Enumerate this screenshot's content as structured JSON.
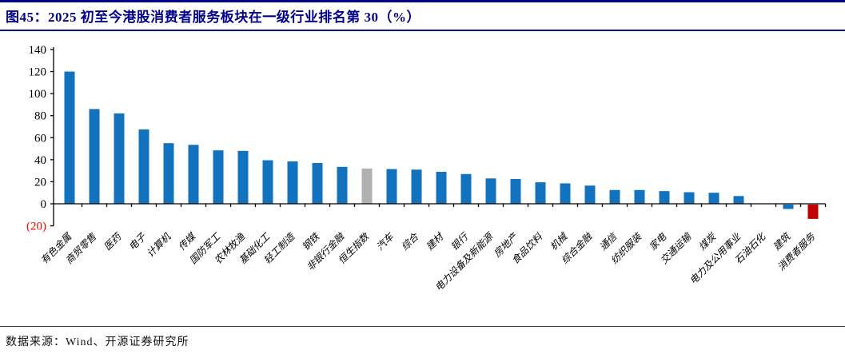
{
  "header": {
    "title": "图45：2025 初至今港股消费者服务板块在一级行业排名第 30（%）"
  },
  "footer": {
    "source": "数据来源：Wind、开源证券研究所"
  },
  "chart_data": {
    "type": "bar",
    "title": "2025 初至今港股消费者服务板块在一级行业排名第 30（%）",
    "xlabel": "",
    "ylabel": "",
    "unit": "%",
    "ylim": [
      -20,
      140
    ],
    "grid": false,
    "legend": null,
    "y_ticks": [
      140,
      120,
      100,
      80,
      60,
      40,
      20,
      0,
      -20
    ],
    "y_tick_labels": [
      "140",
      "120",
      "100",
      "80",
      "60",
      "40",
      "20",
      "0",
      "(20)"
    ],
    "categories": [
      "有色金属",
      "商贸零售",
      "医药",
      "电子",
      "计算机",
      "传媒",
      "国防军工",
      "农林牧渔",
      "基础化工",
      "轻工制造",
      "钢铁",
      "非银行金融",
      "恒生指数",
      "汽车",
      "综合",
      "建材",
      "银行",
      "电力设备及新能源",
      "房地产",
      "食品饮料",
      "机械",
      "综合金融",
      "通信",
      "纺织服装",
      "家电",
      "交通运输",
      "煤炭",
      "电力及公用事业",
      "石油石化",
      "建筑",
      "消费者服务"
    ],
    "values": [
      120,
      86,
      82,
      67.5,
      55,
      53.5,
      48.5,
      48,
      39.5,
      38.5,
      37,
      33.5,
      32,
      31.5,
      31,
      29,
      27,
      23,
      22.5,
      19.5,
      18.5,
      16.5,
      12.5,
      12.5,
      11.5,
      10.5,
      10,
      7,
      0,
      -4,
      -13
    ],
    "special_bars": {
      "gray_category": "恒生指数",
      "red_category": "消费者服务"
    },
    "colors": {
      "default_bar": "#1272BD",
      "gray_bar": "#B0B0B0",
      "red_bar": "#C00000",
      "title_blue": "#00008B",
      "negative_tick": "#FF0000"
    }
  }
}
